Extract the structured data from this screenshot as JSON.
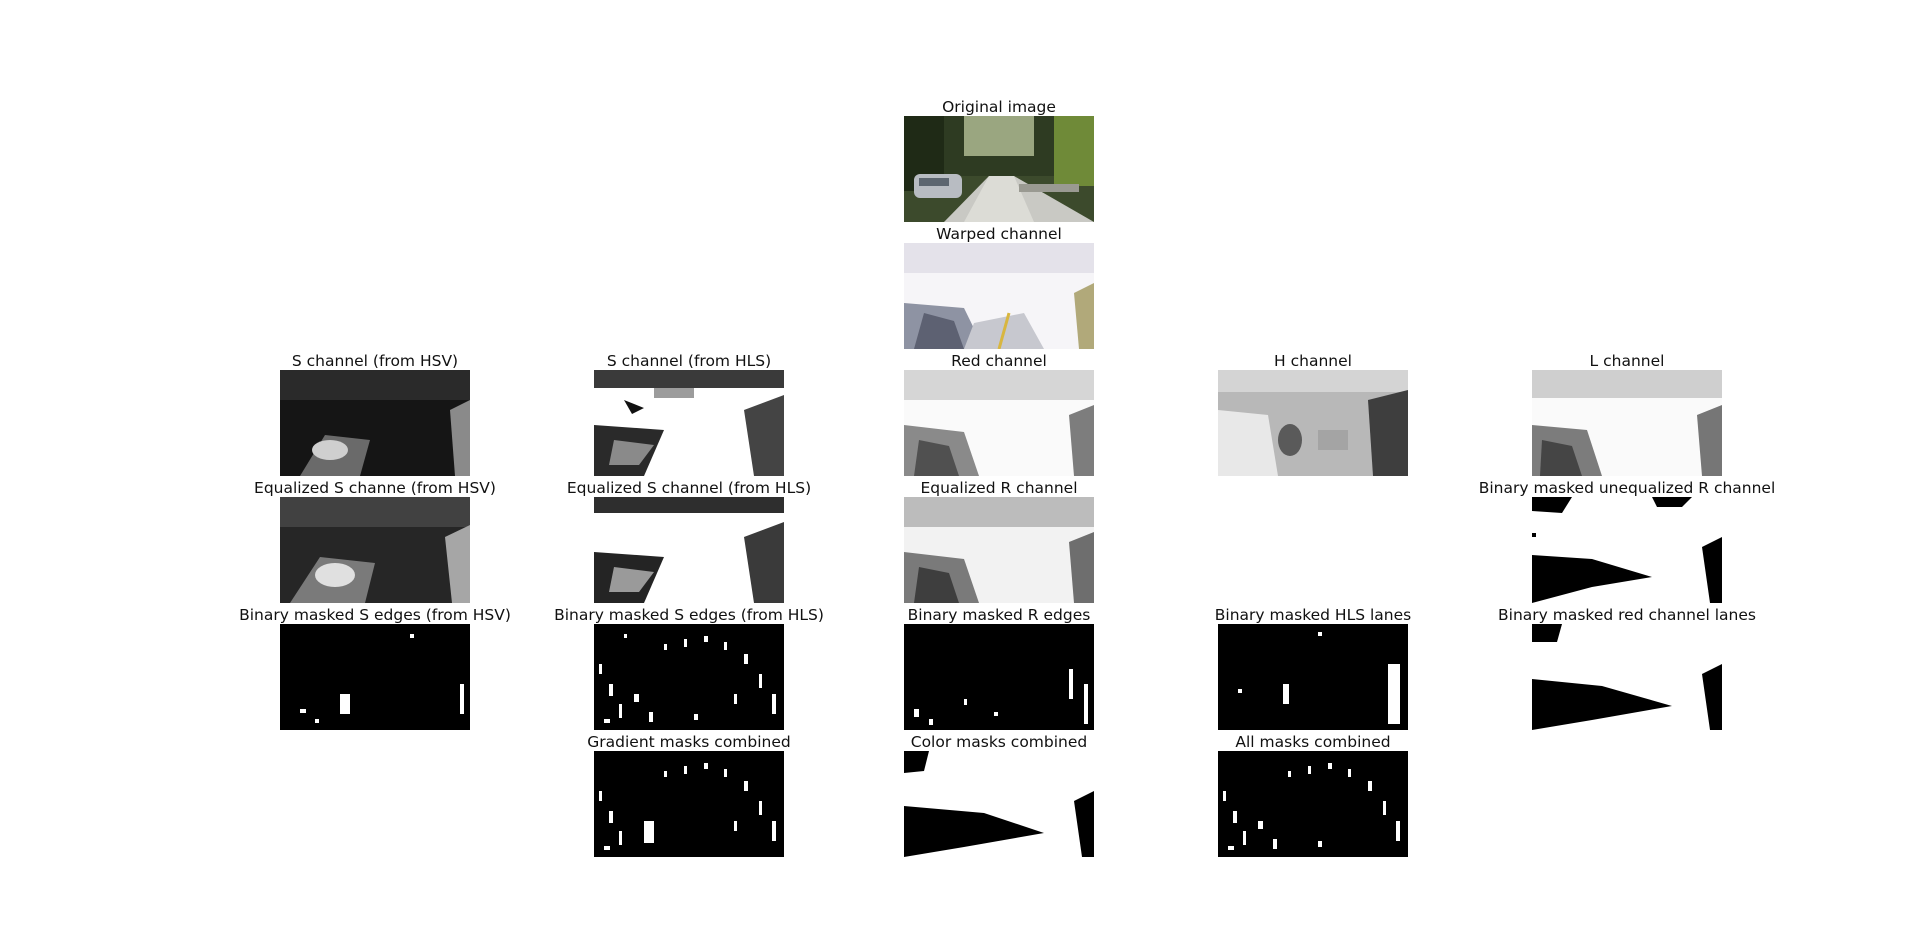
{
  "figure": {
    "panels": [
      {
        "id": "original",
        "title": "Original image",
        "style": "photo"
      },
      {
        "id": "warped",
        "title": "Warped channel",
        "style": "warped"
      },
      {
        "id": "s-hsv",
        "title": "S channel (from HSV)",
        "style": "dark"
      },
      {
        "id": "s-hls",
        "title": "S channel (from HLS)",
        "style": "gray-bright"
      },
      {
        "id": "red",
        "title": "Red channel",
        "style": "bright"
      },
      {
        "id": "h",
        "title": "H channel",
        "style": "hue"
      },
      {
        "id": "l",
        "title": "L channel",
        "style": "bright"
      },
      {
        "id": "eq-s-hsv",
        "title": "Equalized S channe (from HSV)",
        "style": "dark"
      },
      {
        "id": "eq-s-hls",
        "title": "Equalized S channel (from HLS)",
        "style": "gray-bright"
      },
      {
        "id": "eq-r",
        "title": "Equalized R channel",
        "style": "bright"
      },
      {
        "id": "bin-unequal-r",
        "title": "Binary masked unequalized R channel",
        "style": "binary-white"
      },
      {
        "id": "bin-s-hsv",
        "title": "Binary masked S edges (from HSV)",
        "style": "binary-sparse"
      },
      {
        "id": "bin-s-hls",
        "title": "Binary masked S edges (from HLS)",
        "style": "binary-edges"
      },
      {
        "id": "bin-r",
        "title": "Binary masked R edges",
        "style": "binary-r"
      },
      {
        "id": "bin-hls-lanes",
        "title": "Binary masked HLS lanes",
        "style": "binary-sparse"
      },
      {
        "id": "bin-red-lanes",
        "title": "Binary masked red channel lanes",
        "style": "binary-white"
      },
      {
        "id": "grad-combined",
        "title": "Gradient masks combined",
        "style": "binary-edges"
      },
      {
        "id": "color-combined",
        "title": "Color masks combined",
        "style": "binary-white"
      },
      {
        "id": "all-combined",
        "title": "All masks combined",
        "style": "binary-edges"
      }
    ]
  }
}
